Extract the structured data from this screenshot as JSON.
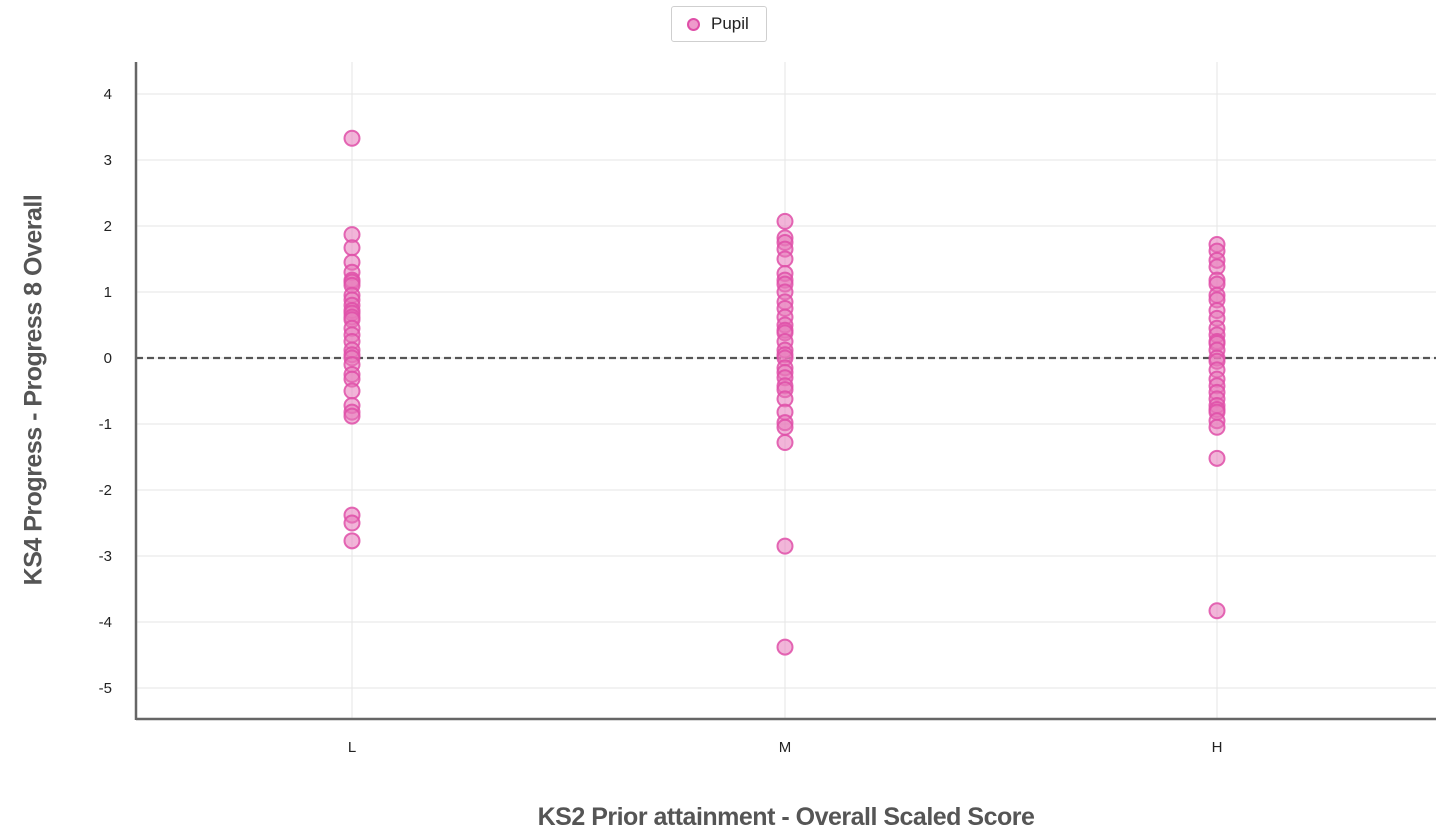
{
  "legend": {
    "label": "Pupil",
    "marker_color": "#e878ba",
    "marker_stroke": "#df4fa8"
  },
  "chart_data": {
    "type": "scatter",
    "xlabel": "KS2 Prior attainment - Overall Scaled Score",
    "ylabel": "KS4 Progress - Progress 8 Overall",
    "categories": [
      "L",
      "M",
      "H"
    ],
    "ylim": [
      -5.5,
      4.5
    ],
    "yticks": [
      4,
      3,
      2,
      1,
      0,
      -1,
      -2,
      -3,
      -4,
      -5
    ],
    "grid": true,
    "legend_position": "top-center",
    "reference_line": {
      "y": 0,
      "style": "dashed",
      "color": "#555555"
    },
    "series": [
      {
        "name": "Pupil",
        "points": [
          {
            "x": "L",
            "y": 3.33
          },
          {
            "x": "L",
            "y": 1.87
          },
          {
            "x": "L",
            "y": 1.67
          },
          {
            "x": "L",
            "y": 1.45
          },
          {
            "x": "L",
            "y": 1.3
          },
          {
            "x": "L",
            "y": 1.18
          },
          {
            "x": "L",
            "y": 1.15
          },
          {
            "x": "L",
            "y": 1.1
          },
          {
            "x": "L",
            "y": 0.95
          },
          {
            "x": "L",
            "y": 0.88
          },
          {
            "x": "L",
            "y": 0.8
          },
          {
            "x": "L",
            "y": 0.72
          },
          {
            "x": "L",
            "y": 0.68
          },
          {
            "x": "L",
            "y": 0.62
          },
          {
            "x": "L",
            "y": 0.58
          },
          {
            "x": "L",
            "y": 0.45
          },
          {
            "x": "L",
            "y": 0.35
          },
          {
            "x": "L",
            "y": 0.25
          },
          {
            "x": "L",
            "y": 0.12
          },
          {
            "x": "L",
            "y": 0.05
          },
          {
            "x": "L",
            "y": 0.0
          },
          {
            "x": "L",
            "y": -0.1
          },
          {
            "x": "L",
            "y": -0.25
          },
          {
            "x": "L",
            "y": -0.32
          },
          {
            "x": "L",
            "y": -0.5
          },
          {
            "x": "L",
            "y": -0.72
          },
          {
            "x": "L",
            "y": -0.82
          },
          {
            "x": "L",
            "y": -0.88
          },
          {
            "x": "L",
            "y": -2.38
          },
          {
            "x": "L",
            "y": -2.5
          },
          {
            "x": "L",
            "y": -2.77
          },
          {
            "x": "M",
            "y": 2.07
          },
          {
            "x": "M",
            "y": 1.82
          },
          {
            "x": "M",
            "y": 1.75
          },
          {
            "x": "M",
            "y": 1.65
          },
          {
            "x": "M",
            "y": 1.5
          },
          {
            "x": "M",
            "y": 1.28
          },
          {
            "x": "M",
            "y": 1.18
          },
          {
            "x": "M",
            "y": 1.12
          },
          {
            "x": "M",
            "y": 1.0
          },
          {
            "x": "M",
            "y": 0.85
          },
          {
            "x": "M",
            "y": 0.75
          },
          {
            "x": "M",
            "y": 0.62
          },
          {
            "x": "M",
            "y": 0.5
          },
          {
            "x": "M",
            "y": 0.42
          },
          {
            "x": "M",
            "y": 0.38
          },
          {
            "x": "M",
            "y": 0.25
          },
          {
            "x": "M",
            "y": 0.12
          },
          {
            "x": "M",
            "y": 0.05
          },
          {
            "x": "M",
            "y": 0.0
          },
          {
            "x": "M",
            "y": -0.15
          },
          {
            "x": "M",
            "y": -0.22
          },
          {
            "x": "M",
            "y": -0.3
          },
          {
            "x": "M",
            "y": -0.42
          },
          {
            "x": "M",
            "y": -0.48
          },
          {
            "x": "M",
            "y": -0.62
          },
          {
            "x": "M",
            "y": -0.82
          },
          {
            "x": "M",
            "y": -0.98
          },
          {
            "x": "M",
            "y": -1.05
          },
          {
            "x": "M",
            "y": -1.28
          },
          {
            "x": "M",
            "y": -2.85
          },
          {
            "x": "M",
            "y": -4.38
          },
          {
            "x": "H",
            "y": 1.72
          },
          {
            "x": "H",
            "y": 1.62
          },
          {
            "x": "H",
            "y": 1.48
          },
          {
            "x": "H",
            "y": 1.38
          },
          {
            "x": "H",
            "y": 1.18
          },
          {
            "x": "H",
            "y": 1.12
          },
          {
            "x": "H",
            "y": 0.95
          },
          {
            "x": "H",
            "y": 0.88
          },
          {
            "x": "H",
            "y": 0.72
          },
          {
            "x": "H",
            "y": 0.6
          },
          {
            "x": "H",
            "y": 0.45
          },
          {
            "x": "H",
            "y": 0.35
          },
          {
            "x": "H",
            "y": 0.25
          },
          {
            "x": "H",
            "y": 0.22
          },
          {
            "x": "H",
            "y": 0.12
          },
          {
            "x": "H",
            "y": 0.0
          },
          {
            "x": "H",
            "y": -0.05
          },
          {
            "x": "H",
            "y": -0.18
          },
          {
            "x": "H",
            "y": -0.32
          },
          {
            "x": "H",
            "y": -0.42
          },
          {
            "x": "H",
            "y": -0.52
          },
          {
            "x": "H",
            "y": -0.62
          },
          {
            "x": "H",
            "y": -0.72
          },
          {
            "x": "H",
            "y": -0.78
          },
          {
            "x": "H",
            "y": -0.82
          },
          {
            "x": "H",
            "y": -0.95
          },
          {
            "x": "H",
            "y": -1.05
          },
          {
            "x": "H",
            "y": -1.52
          },
          {
            "x": "H",
            "y": -3.83
          }
        ]
      }
    ]
  }
}
